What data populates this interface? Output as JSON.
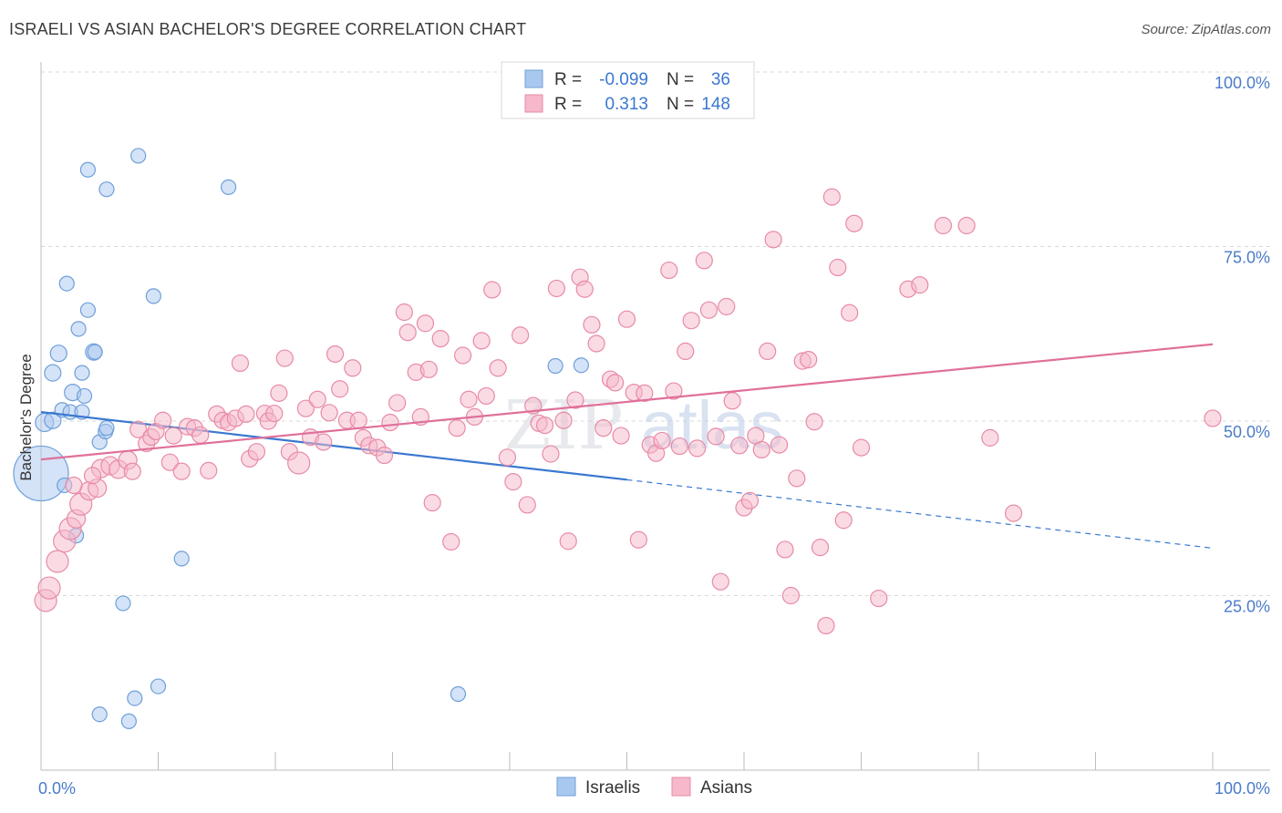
{
  "title": "ISRAELI VS ASIAN BACHELOR'S DEGREE CORRELATION CHART",
  "source": "Source: ZipAtlas.com",
  "watermark": {
    "zip": "ZIP",
    "atlas": "atlas"
  },
  "legend": {
    "rows": [
      {
        "r_label": "R =",
        "r_value": "-0.099",
        "n_label": "N =",
        "n_value": "36",
        "color": "#a9c8ef",
        "stroke": "#6f9fd9"
      },
      {
        "r_label": "R =",
        "r_value": "0.313",
        "n_label": "N =",
        "n_value": "148",
        "color": "#f6b8ca",
        "stroke": "#e88aa6"
      }
    ]
  },
  "bottom_legend": [
    {
      "label": "Israelis",
      "color": "#a9c8ef",
      "stroke": "#6f9fd9"
    },
    {
      "label": "Asians",
      "color": "#f6b8ca",
      "stroke": "#e88aa6"
    }
  ],
  "chart_data": {
    "type": "scatter",
    "ylabel": "Bachelor's Degree",
    "xlim": [
      0,
      100
    ],
    "ylim": [
      0,
      100
    ],
    "x_tick_labels": [
      "0.0%",
      "100.0%"
    ],
    "y_ticks": [
      {
        "value": 25,
        "label": "25.0%"
      },
      {
        "value": 50,
        "label": "50.0%"
      },
      {
        "value": 75,
        "label": "75.0%"
      },
      {
        "value": 100,
        "label": "100.0%"
      }
    ],
    "grid": true,
    "series": [
      {
        "name": "Israelis",
        "color": "#6f9fd9",
        "fill": "#a9c8ef",
        "trend": {
          "x0": 0,
          "y0": 51.3,
          "x1": 50,
          "y1": 41.6,
          "dashed_to_x": 100,
          "dashed_to_y": 31.8,
          "color": "#3a78d0"
        },
        "points": [
          [
            0.0,
            42.5,
            30
          ],
          [
            0.3,
            49.8,
            10
          ],
          [
            1.0,
            50.1,
            9
          ],
          [
            1.0,
            56.9,
            9
          ],
          [
            1.5,
            59.7,
            9
          ],
          [
            1.8,
            51.6,
            8
          ],
          [
            2.0,
            40.8,
            8
          ],
          [
            2.2,
            69.7,
            8
          ],
          [
            2.5,
            51.3,
            8
          ],
          [
            2.7,
            54.1,
            9
          ],
          [
            3.0,
            33.6,
            8
          ],
          [
            3.2,
            63.2,
            8
          ],
          [
            3.5,
            56.9,
            8
          ],
          [
            3.5,
            51.3,
            8
          ],
          [
            3.7,
            53.6,
            8
          ],
          [
            4.0,
            65.9,
            8
          ],
          [
            4.0,
            86.0,
            8
          ],
          [
            4.5,
            59.9,
            9
          ],
          [
            4.6,
            59.9,
            8
          ],
          [
            5.0,
            47.0,
            8
          ],
          [
            5.0,
            8.0,
            8
          ],
          [
            5.5,
            48.5,
            8
          ],
          [
            5.6,
            49.0,
            8
          ],
          [
            5.6,
            83.2,
            8
          ],
          [
            7.0,
            23.9,
            8
          ],
          [
            7.5,
            7.0,
            8
          ],
          [
            8.0,
            10.3,
            8
          ],
          [
            8.3,
            88.0,
            8
          ],
          [
            9.6,
            67.9,
            8
          ],
          [
            10.0,
            12.0,
            8
          ],
          [
            12.0,
            30.3,
            8
          ],
          [
            16.0,
            83.5,
            8
          ],
          [
            35.6,
            10.9,
            8
          ],
          [
            43.9,
            57.9,
            8
          ],
          [
            46.1,
            58.0,
            8
          ]
        ]
      },
      {
        "name": "Asians",
        "color": "#e88aa6",
        "fill": "#f6b8ca",
        "trend": {
          "x0": 0,
          "y0": 44.5,
          "x1": 100,
          "y1": 61.0,
          "color": "#e0709a"
        },
        "points": [
          [
            0.4,
            24.3,
            12
          ],
          [
            0.7,
            26.1,
            12
          ],
          [
            1.4,
            29.9,
            12
          ],
          [
            2.0,
            32.8,
            12
          ],
          [
            2.5,
            34.6,
            12
          ],
          [
            3.0,
            36.0,
            10
          ],
          [
            3.4,
            38.1,
            12
          ],
          [
            4.1,
            40.0,
            10
          ],
          [
            4.8,
            40.4,
            10
          ],
          [
            5.1,
            43.2,
            10
          ],
          [
            5.9,
            43.6,
            10
          ],
          [
            6.6,
            43.1,
            10
          ],
          [
            7.4,
            44.4,
            10
          ],
          [
            7.8,
            42.8,
            9
          ],
          [
            8.3,
            48.8,
            9
          ],
          [
            9.0,
            46.8,
            9
          ],
          [
            9.4,
            47.7,
            9
          ],
          [
            9.8,
            48.5,
            9
          ],
          [
            10.4,
            50.1,
            9
          ],
          [
            11.0,
            44.1,
            9
          ],
          [
            11.3,
            47.9,
            9
          ],
          [
            12.0,
            42.8,
            9
          ],
          [
            12.5,
            49.2,
            9
          ],
          [
            13.1,
            49.0,
            9
          ],
          [
            13.6,
            48.0,
            9
          ],
          [
            14.3,
            42.9,
            9
          ],
          [
            15.0,
            51.0,
            9
          ],
          [
            15.5,
            50.1,
            9
          ],
          [
            16.0,
            49.8,
            9
          ],
          [
            16.6,
            50.4,
            9
          ],
          [
            17.0,
            58.3,
            9
          ],
          [
            17.5,
            51.0,
            9
          ],
          [
            17.8,
            44.6,
            9
          ],
          [
            18.4,
            45.6,
            9
          ],
          [
            19.1,
            51.1,
            9
          ],
          [
            19.4,
            50.0,
            9
          ],
          [
            19.9,
            51.1,
            9
          ],
          [
            20.3,
            54.0,
            9
          ],
          [
            20.8,
            59.0,
            9
          ],
          [
            21.2,
            45.6,
            9
          ],
          [
            22.0,
            44.0,
            12
          ],
          [
            22.6,
            51.8,
            9
          ],
          [
            23.0,
            47.7,
            9
          ],
          [
            23.6,
            53.1,
            9
          ],
          [
            24.1,
            47.0,
            9
          ],
          [
            24.6,
            51.2,
            9
          ],
          [
            25.1,
            59.6,
            9
          ],
          [
            25.5,
            54.6,
            9
          ],
          [
            26.1,
            50.1,
            9
          ],
          [
            26.6,
            57.6,
            9
          ],
          [
            27.1,
            50.1,
            9
          ],
          [
            27.5,
            47.6,
            9
          ],
          [
            28.0,
            46.5,
            9
          ],
          [
            28.7,
            46.2,
            9
          ],
          [
            29.3,
            45.1,
            9
          ],
          [
            29.8,
            49.8,
            9
          ],
          [
            30.4,
            52.6,
            9
          ],
          [
            31.0,
            65.6,
            9
          ],
          [
            31.3,
            62.7,
            9
          ],
          [
            32.0,
            57.0,
            9
          ],
          [
            32.4,
            50.6,
            9
          ],
          [
            32.8,
            64.0,
            9
          ],
          [
            33.1,
            57.4,
            9
          ],
          [
            33.4,
            38.3,
            9
          ],
          [
            34.1,
            61.8,
            9
          ],
          [
            35.0,
            32.7,
            9
          ],
          [
            35.5,
            49.0,
            9
          ],
          [
            36.0,
            59.4,
            9
          ],
          [
            36.5,
            53.1,
            9
          ],
          [
            37.0,
            50.6,
            9
          ],
          [
            37.6,
            61.5,
            9
          ],
          [
            38.0,
            53.6,
            9
          ],
          [
            38.5,
            68.8,
            9
          ],
          [
            39.0,
            57.6,
            9
          ],
          [
            39.8,
            44.8,
            9
          ],
          [
            40.3,
            41.3,
            9
          ],
          [
            40.9,
            62.3,
            9
          ],
          [
            41.5,
            38.0,
            9
          ],
          [
            42.0,
            52.2,
            9
          ],
          [
            42.5,
            49.7,
            9
          ],
          [
            43.0,
            49.4,
            9
          ],
          [
            43.5,
            45.3,
            9
          ],
          [
            44.0,
            69.0,
            9
          ],
          [
            44.6,
            50.1,
            9
          ],
          [
            45.0,
            32.8,
            9
          ],
          [
            45.6,
            53.0,
            9
          ],
          [
            46.0,
            70.6,
            9
          ],
          [
            46.4,
            68.9,
            9
          ],
          [
            47.0,
            63.8,
            9
          ],
          [
            47.4,
            61.1,
            9
          ],
          [
            48.0,
            49.0,
            9
          ],
          [
            48.6,
            56.0,
            9
          ],
          [
            49.0,
            55.5,
            9
          ],
          [
            49.5,
            47.9,
            9
          ],
          [
            50.0,
            64.6,
            9
          ],
          [
            50.6,
            54.1,
            9
          ],
          [
            51.0,
            33.0,
            9
          ],
          [
            51.5,
            54.0,
            9
          ],
          [
            52.0,
            46.6,
            9
          ],
          [
            52.5,
            45.4,
            9
          ],
          [
            53.0,
            47.2,
            9
          ],
          [
            53.6,
            71.6,
            9
          ],
          [
            54.0,
            54.3,
            9
          ],
          [
            54.5,
            46.4,
            9
          ],
          [
            55.0,
            60.0,
            9
          ],
          [
            55.5,
            64.4,
            9
          ],
          [
            56.0,
            46.1,
            9
          ],
          [
            56.6,
            73.0,
            9
          ],
          [
            57.0,
            65.9,
            9
          ],
          [
            57.6,
            47.8,
            9
          ],
          [
            58.0,
            27.0,
            9
          ],
          [
            58.5,
            66.4,
            9
          ],
          [
            59.0,
            52.9,
            9
          ],
          [
            59.6,
            46.5,
            9
          ],
          [
            60.0,
            37.6,
            9
          ],
          [
            60.5,
            38.6,
            9
          ],
          [
            61.0,
            47.9,
            9
          ],
          [
            61.5,
            45.9,
            9
          ],
          [
            62.0,
            60.0,
            9
          ],
          [
            62.5,
            76.0,
            9
          ],
          [
            63.0,
            46.6,
            9
          ],
          [
            63.5,
            31.6,
            9
          ],
          [
            64.0,
            25.0,
            9
          ],
          [
            64.5,
            41.8,
            9
          ],
          [
            65.0,
            58.6,
            9
          ],
          [
            65.5,
            58.8,
            9
          ],
          [
            66.0,
            49.9,
            9
          ],
          [
            66.5,
            31.9,
            9
          ],
          [
            67.0,
            20.7,
            9
          ],
          [
            67.5,
            82.1,
            9
          ],
          [
            68.0,
            72.0,
            9
          ],
          [
            68.5,
            35.8,
            9
          ],
          [
            69.0,
            65.5,
            9
          ],
          [
            69.4,
            78.3,
            9
          ],
          [
            70.0,
            46.2,
            9
          ],
          [
            71.5,
            24.6,
            9
          ],
          [
            74.0,
            68.9,
            9
          ],
          [
            75.0,
            69.5,
            9
          ],
          [
            77.0,
            78.0,
            9
          ],
          [
            79.0,
            78.0,
            9
          ],
          [
            81.0,
            47.6,
            9
          ],
          [
            83.0,
            36.8,
            9
          ],
          [
            100.0,
            50.4,
            9
          ],
          [
            2.8,
            40.8,
            9
          ],
          [
            4.4,
            42.2,
            9
          ]
        ]
      }
    ]
  }
}
